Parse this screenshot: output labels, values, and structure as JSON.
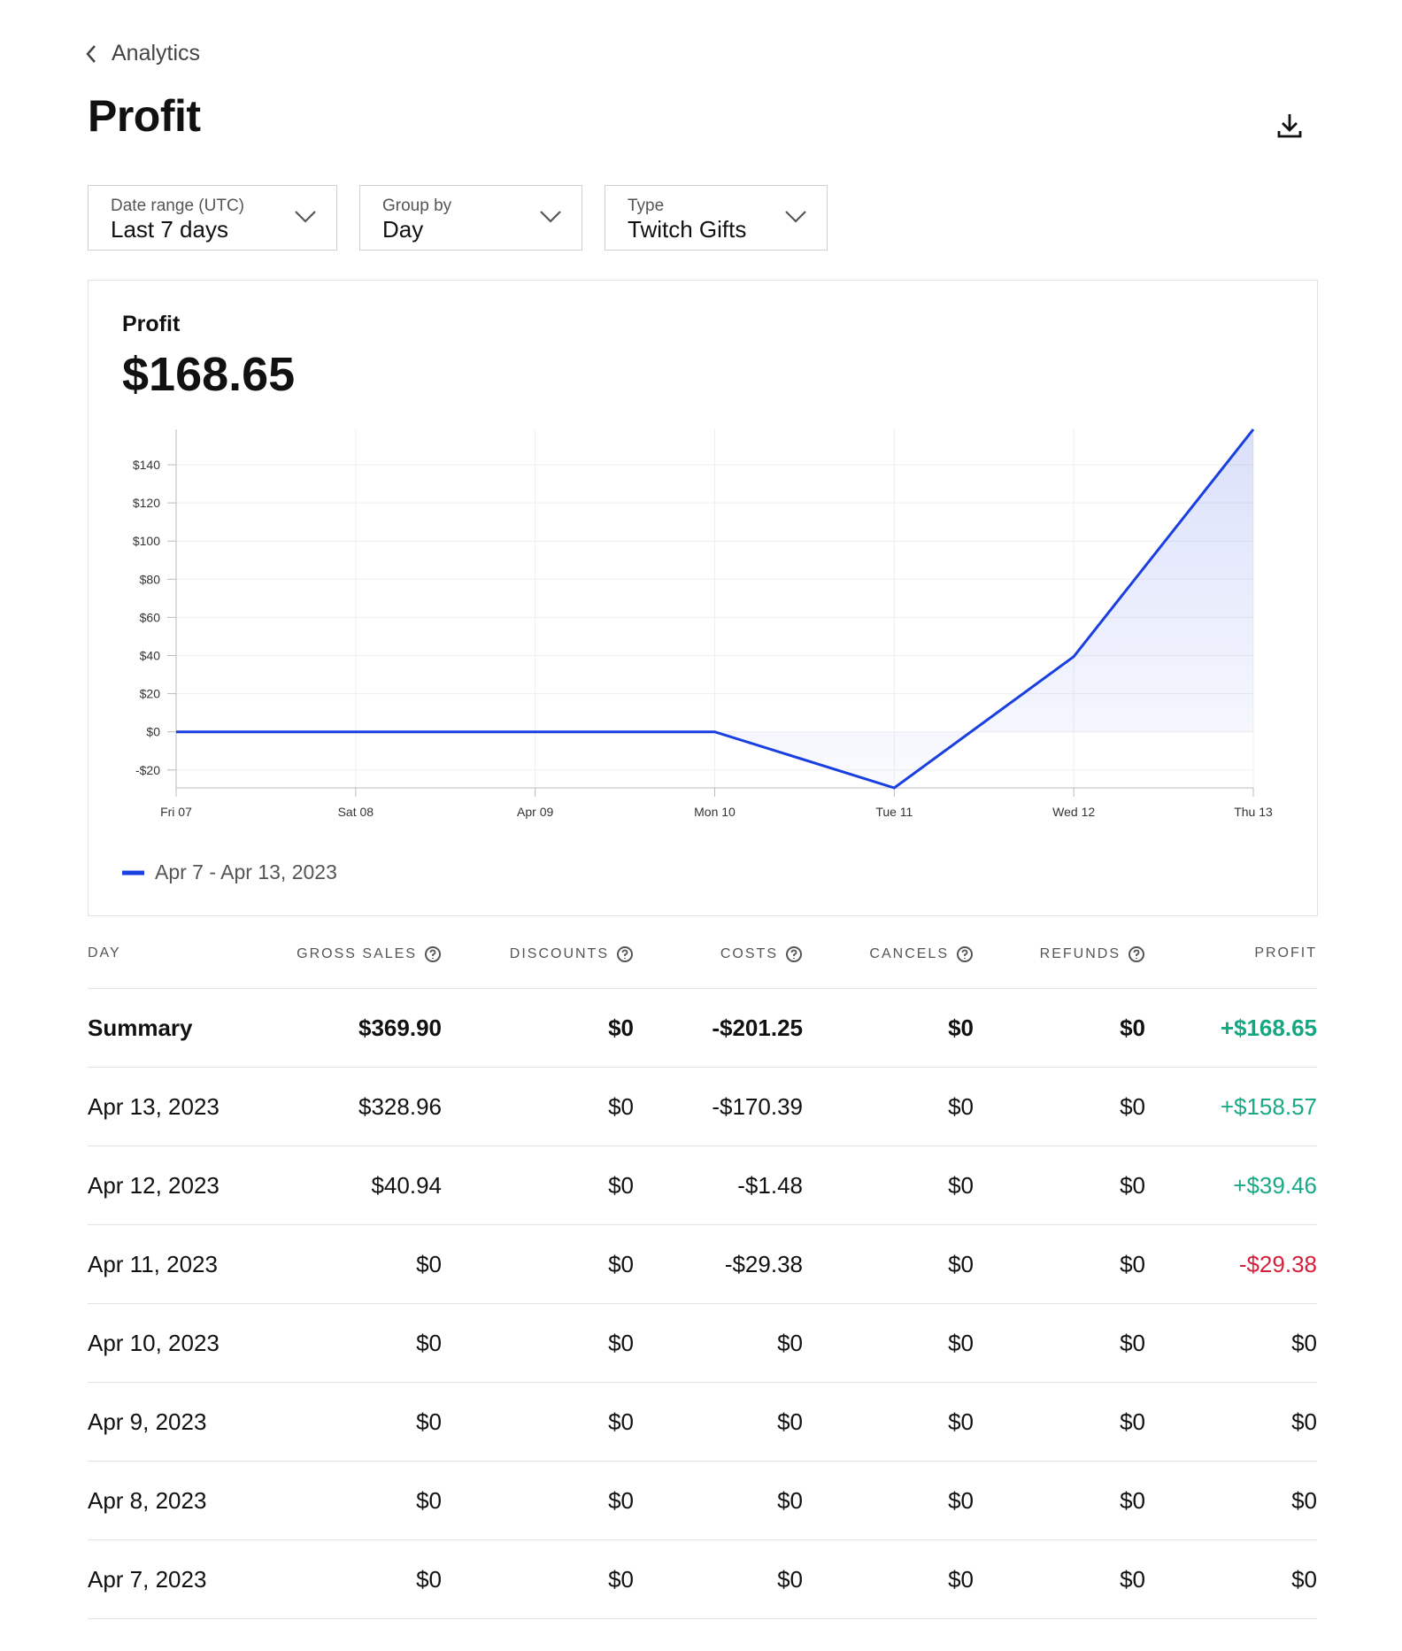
{
  "header": {
    "back": "Analytics",
    "title": "Profit"
  },
  "filters": [
    {
      "label": "Date range (UTC)",
      "value": "Last 7 days"
    },
    {
      "label": "Group by",
      "value": "Day"
    },
    {
      "label": "Type",
      "value": "Twitch Gifts"
    }
  ],
  "kpi": {
    "label": "Profit",
    "value": "$168.65"
  },
  "chart_data": {
    "type": "line",
    "categories": [
      "Fri 07",
      "Sat 08",
      "Apr 09",
      "Mon 10",
      "Tue 11",
      "Wed 12",
      "Thu 13"
    ],
    "series": [
      {
        "name": "Apr 7 - Apr 13, 2023",
        "color": "#1a3fe0",
        "values": [
          0,
          0,
          0,
          0,
          -29.38,
          39.46,
          158.57
        ]
      }
    ],
    "ylim": [
      -29.38,
      158.57
    ],
    "yticks": [
      {
        "value": -20,
        "label": "-$20"
      },
      {
        "value": 0,
        "label": "$0"
      },
      {
        "value": 20,
        "label": "$20"
      },
      {
        "value": 40,
        "label": "$40"
      },
      {
        "value": 60,
        "label": "$60"
      },
      {
        "value": 80,
        "label": "$80"
      },
      {
        "value": 100,
        "label": "$100"
      },
      {
        "value": 120,
        "label": "$120"
      },
      {
        "value": 140,
        "label": "$140"
      }
    ],
    "grid": true
  },
  "table": {
    "columns": [
      "DAY",
      "GROSS SALES",
      "DISCOUNTS",
      "COSTS",
      "CANCELS",
      "REFUNDS",
      "PROFIT"
    ],
    "summary": [
      "Summary",
      "$369.90",
      "$0",
      "-$201.25",
      "$0",
      "$0",
      "+$168.65"
    ],
    "rows": [
      [
        "Apr 13, 2023",
        "$328.96",
        "$0",
        "-$170.39",
        "$0",
        "$0",
        "+$158.57"
      ],
      [
        "Apr 12, 2023",
        "$40.94",
        "$0",
        "-$1.48",
        "$0",
        "$0",
        "+$39.46"
      ],
      [
        "Apr 11, 2023",
        "$0",
        "$0",
        "-$29.38",
        "$0",
        "$0",
        "-$29.38"
      ],
      [
        "Apr 10, 2023",
        "$0",
        "$0",
        "$0",
        "$0",
        "$0",
        "$0"
      ],
      [
        "Apr 9, 2023",
        "$0",
        "$0",
        "$0",
        "$0",
        "$0",
        "$0"
      ],
      [
        "Apr 8, 2023",
        "$0",
        "$0",
        "$0",
        "$0",
        "$0",
        "$0"
      ],
      [
        "Apr 7, 2023",
        "$0",
        "$0",
        "$0",
        "$0",
        "$0",
        "$0"
      ]
    ]
  }
}
